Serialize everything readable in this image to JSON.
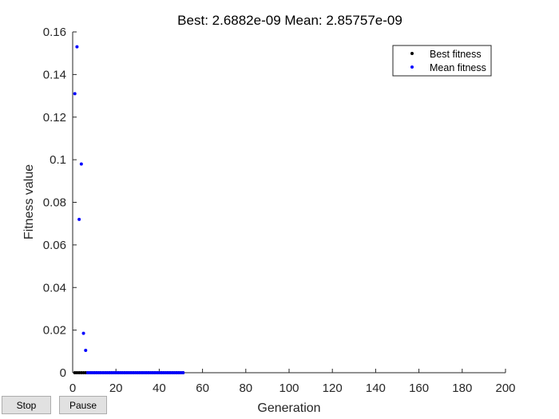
{
  "chart_data": {
    "type": "scatter",
    "title": "Best: 2.6882e-09 Mean: 2.85757e-09",
    "xlabel": "Generation",
    "ylabel": "Fitness value",
    "xlim": [
      0,
      200
    ],
    "ylim": [
      0,
      0.16
    ],
    "xticks": [
      0,
      20,
      40,
      60,
      80,
      100,
      120,
      140,
      160,
      180,
      200
    ],
    "xtick_labels": [
      "0",
      "20",
      "40",
      "60",
      "80",
      "100",
      "120",
      "140",
      "160",
      "180",
      "200"
    ],
    "yticks": [
      0,
      0.02,
      0.04,
      0.06,
      0.08,
      0.1,
      0.12,
      0.14,
      0.16
    ],
    "ytick_labels": [
      "0",
      "0.02",
      "0.04",
      "0.06",
      "0.08",
      "0.1",
      "0.12",
      "0.14",
      "0.16"
    ],
    "grid": false,
    "legend_position": "top-right",
    "series": [
      {
        "name": "Best fitness",
        "color": "#000000",
        "x": [
          1,
          2,
          3,
          4,
          5,
          6,
          7,
          8,
          9,
          10,
          11,
          12,
          13,
          14,
          15,
          16,
          17,
          18,
          19,
          20,
          21,
          22,
          23,
          24,
          25,
          26,
          27,
          28,
          29,
          30,
          31,
          32,
          33,
          34,
          35,
          36,
          37,
          38,
          39,
          40,
          41,
          42,
          43,
          44,
          45,
          46,
          47,
          48,
          49,
          50,
          51
        ],
        "y": [
          0,
          0,
          0,
          0,
          0,
          0,
          0,
          0,
          0,
          0,
          0,
          0,
          0,
          0,
          0,
          0,
          0,
          0,
          0,
          0,
          0,
          0,
          0,
          0,
          0,
          0,
          0,
          0,
          0,
          0,
          0,
          0,
          0,
          0,
          0,
          0,
          0,
          0,
          0,
          0,
          0,
          0,
          0,
          0,
          0,
          0,
          0,
          0,
          0,
          0,
          0
        ]
      },
      {
        "name": "Mean fitness",
        "color": "#0000ff",
        "x": [
          1,
          2,
          3,
          4,
          5,
          6,
          7,
          8,
          9,
          10,
          11,
          12,
          13,
          14,
          15,
          16,
          17,
          18,
          19,
          20,
          21,
          22,
          23,
          24,
          25,
          26,
          27,
          28,
          29,
          30,
          31,
          32,
          33,
          34,
          35,
          36,
          37,
          38,
          39,
          40,
          41,
          42,
          43,
          44,
          45,
          46,
          47,
          48,
          49,
          50,
          51
        ],
        "y": [
          0.131,
          0.153,
          0.072,
          0.098,
          0.0185,
          0.0105,
          0,
          0,
          0,
          0,
          0,
          0,
          0,
          0,
          0,
          0,
          0,
          0,
          0,
          0,
          0,
          0,
          0,
          0,
          0,
          0,
          0,
          0,
          0,
          0,
          0,
          0,
          0,
          0,
          0,
          0,
          0,
          0,
          0,
          0,
          0,
          0,
          0,
          0,
          0,
          0,
          0,
          0,
          0,
          0,
          0
        ]
      }
    ]
  },
  "controls": {
    "stop_label": "Stop",
    "pause_label": "Pause"
  }
}
